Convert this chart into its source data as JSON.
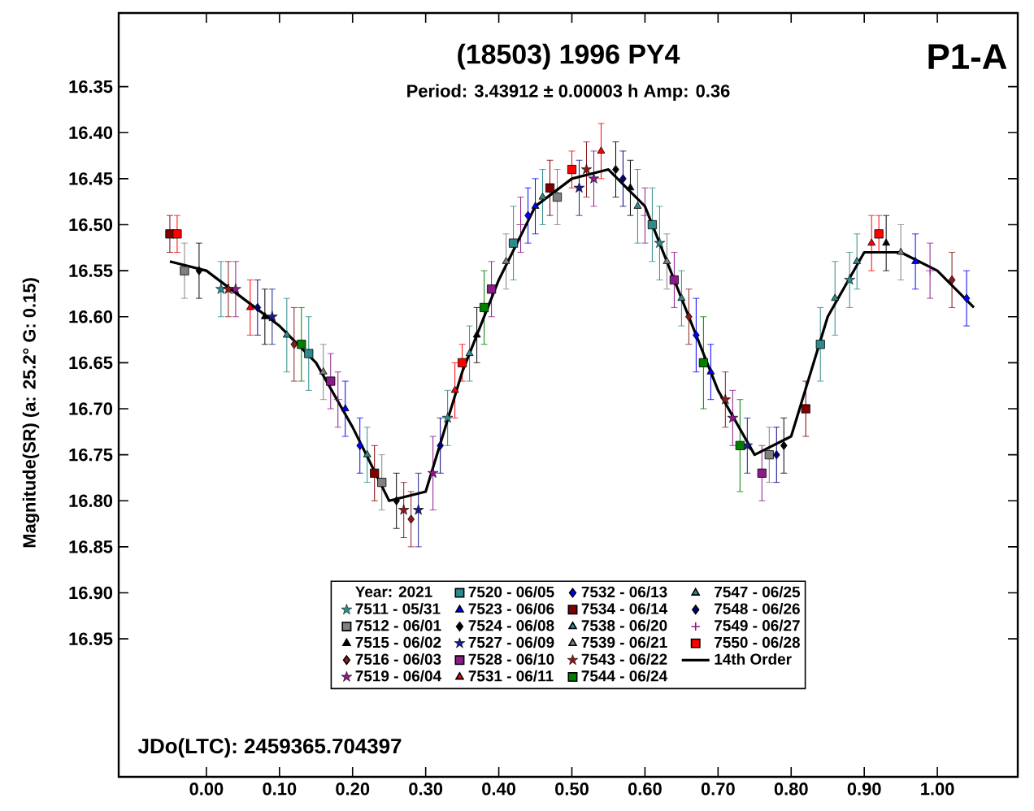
{
  "chart_data": {
    "type": "scatter",
    "title": "(18503) 1996 PY4",
    "subtitle": "Period: 3.43912 ± 0.00003 h  Amp: 0.36",
    "ylabel": "Magnitude(SR)  (a: 25.2°  G: 0.15)",
    "legend_title": "Year: 2021",
    "legend": "bottom",
    "annotations": [
      "P1-A",
      "JDo(LTC): 2459365.704397"
    ],
    "xlim": [
      -0.12,
      1.11
    ],
    "ylim": [
      17.1,
      16.27
    ],
    "xticks": [
      {
        "value": 0,
        "label": "0.00"
      },
      {
        "value": 0.1,
        "label": "0.10"
      },
      {
        "value": 0.2,
        "label": "0.20"
      },
      {
        "value": 0.3,
        "label": "0.30"
      },
      {
        "value": 0.4,
        "label": "0.40"
      },
      {
        "value": 0.5,
        "label": "0.50"
      },
      {
        "value": 0.6,
        "label": "0.60"
      },
      {
        "value": 0.7,
        "label": "0.70"
      },
      {
        "value": 0.8,
        "label": "0.80"
      },
      {
        "value": 0.9,
        "label": "0.90"
      },
      {
        "value": 1.0,
        "label": "1.00"
      }
    ],
    "yticks": [
      {
        "value": 16.35,
        "label": "16.35"
      },
      {
        "value": 16.4,
        "label": "16.40"
      },
      {
        "value": 16.45,
        "label": "16.45"
      },
      {
        "value": 16.5,
        "label": "16.50"
      },
      {
        "value": 16.55,
        "label": "16.55"
      },
      {
        "value": 16.6,
        "label": "16.60"
      },
      {
        "value": 16.65,
        "label": "16.65"
      },
      {
        "value": 16.7,
        "label": "16.70"
      },
      {
        "value": 16.75,
        "label": "16.75"
      },
      {
        "value": 16.8,
        "label": "16.80"
      },
      {
        "value": 16.85,
        "label": "16.85"
      },
      {
        "value": 16.9,
        "label": "16.90"
      },
      {
        "value": 16.95,
        "label": "16.95"
      }
    ],
    "series": [
      {
        "name": "7511 - 05/31",
        "color": "#2e8b8b",
        "marker": "star",
        "x": [
          0.02,
          0.33,
          0.62,
          0.88
        ],
        "values": [
          16.57,
          16.71,
          16.52,
          16.56
        ],
        "errors": [
          0.03,
          0.03,
          0.04,
          0.03
        ]
      },
      {
        "name": "7512 - 06/01",
        "color": "#808080",
        "marker": "square",
        "x": [
          -0.03,
          0.24,
          0.48,
          0.77
        ],
        "values": [
          16.55,
          16.78,
          16.47,
          16.75
        ],
        "errors": [
          0.03,
          0.03,
          0.03,
          0.03
        ]
      },
      {
        "name": "7515 - 06/02",
        "color": "#000000",
        "marker": "triangle",
        "x": [
          0.08,
          0.37,
          0.58,
          0.93
        ],
        "values": [
          16.6,
          16.62,
          16.46,
          16.52
        ],
        "errors": [
          0.03,
          0.03,
          0.03,
          0.03
        ]
      },
      {
        "name": "7516 - 06/03",
        "color": "#8b1a1a",
        "marker": "diamond",
        "x": [
          0.12,
          0.28,
          0.66,
          1.02
        ],
        "values": [
          16.63,
          16.82,
          16.6,
          16.56
        ],
        "errors": [
          0.04,
          0.03,
          0.03,
          0.03
        ]
      },
      {
        "name": "7519 - 06/04",
        "color": "#8b1a8b",
        "marker": "star",
        "x": [
          0.04,
          0.31,
          0.53,
          0.72
        ],
        "values": [
          16.57,
          16.77,
          16.45,
          16.71
        ],
        "errors": [
          0.03,
          0.04,
          0.03,
          0.03
        ]
      },
      {
        "name": "7520 - 06/05",
        "color": "#2e8b8b",
        "marker": "square",
        "x": [
          0.14,
          0.42,
          0.61,
          0.84
        ],
        "values": [
          16.64,
          16.52,
          16.5,
          16.63
        ],
        "errors": [
          0.04,
          0.04,
          0.04,
          0.04
        ]
      },
      {
        "name": "7523 - 06/06",
        "color": "#0000ff",
        "marker": "triangle",
        "x": [
          0.19,
          0.45,
          0.69,
          0.97
        ],
        "values": [
          16.7,
          16.48,
          16.66,
          16.54
        ],
        "errors": [
          0.03,
          0.03,
          0.03,
          0.03
        ]
      },
      {
        "name": "7524 - 06/08",
        "color": "#000000",
        "marker": "diamond",
        "x": [
          -0.01,
          0.26,
          0.56,
          0.79
        ],
        "values": [
          16.55,
          16.8,
          16.44,
          16.74
        ],
        "errors": [
          0.03,
          0.03,
          0.03,
          0.03
        ]
      },
      {
        "name": "7527 - 06/09",
        "color": "#1a1a8b",
        "marker": "star",
        "x": [
          0.09,
          0.29,
          0.51,
          0.74
        ],
        "values": [
          16.6,
          16.81,
          16.46,
          16.74
        ],
        "errors": [
          0.03,
          0.04,
          0.03,
          0.03
        ]
      },
      {
        "name": "7528 - 06/10",
        "color": "#8b1a8b",
        "marker": "square",
        "x": [
          0.17,
          0.39,
          0.64,
          0.76
        ],
        "values": [
          16.67,
          16.57,
          16.56,
          16.77
        ],
        "errors": [
          0.03,
          0.03,
          0.03,
          0.03
        ]
      },
      {
        "name": "7531 - 06/11",
        "color": "#ff0000",
        "marker": "triangle",
        "x": [
          0.06,
          0.34,
          0.54,
          0.91
        ],
        "values": [
          16.59,
          16.68,
          16.42,
          16.52
        ],
        "errors": [
          0.03,
          0.03,
          0.03,
          0.03
        ]
      },
      {
        "name": "7532 - 06/13",
        "color": "#0000ff",
        "marker": "diamond",
        "x": [
          0.21,
          0.44,
          0.67,
          1.04
        ],
        "values": [
          16.74,
          16.49,
          16.62,
          16.58
        ],
        "errors": [
          0.03,
          0.03,
          0.04,
          0.03
        ]
      },
      {
        "name": "7534 - 06/14",
        "color": "#800000",
        "marker": "square",
        "x": [
          -0.05,
          0.23,
          0.47,
          0.82
        ],
        "values": [
          16.51,
          16.77,
          16.46,
          16.7
        ],
        "errors": [
          0.02,
          0.03,
          0.03,
          0.03
        ]
      },
      {
        "name": "7538 - 06/20",
        "color": "#2e8b8b",
        "marker": "triangle",
        "x": [
          0.11,
          0.36,
          0.59,
          0.86
        ],
        "values": [
          16.62,
          16.64,
          16.48,
          16.58
        ],
        "errors": [
          0.04,
          0.03,
          0.04,
          0.04
        ]
      },
      {
        "name": "7539 - 06/21",
        "color": "#808080",
        "marker": "triangle",
        "x": [
          0.16,
          0.41,
          0.63,
          0.95
        ],
        "values": [
          16.66,
          16.54,
          16.54,
          16.53
        ],
        "errors": [
          0.03,
          0.03,
          0.03,
          0.03
        ]
      },
      {
        "name": "7543 - 06/22",
        "color": "#8b1a1a",
        "marker": "star",
        "x": [
          0.03,
          0.27,
          0.52,
          0.71
        ],
        "values": [
          16.57,
          16.81,
          16.44,
          16.69
        ],
        "errors": [
          0.03,
          0.03,
          0.03,
          0.03
        ]
      },
      {
        "name": "7544 - 06/24",
        "color": "#008000",
        "marker": "square",
        "x": [
          0.13,
          0.38,
          0.68,
          0.73
        ],
        "values": [
          16.63,
          16.59,
          16.65,
          16.74
        ],
        "errors": [
          0.04,
          0.04,
          0.05,
          0.05
        ]
      },
      {
        "name": "7547 - 06/25",
        "color": "#2e8b8b",
        "marker": "triangle",
        "x": [
          0.22,
          0.46,
          0.65,
          0.89
        ],
        "values": [
          16.75,
          16.47,
          16.58,
          16.54
        ],
        "errors": [
          0.03,
          0.03,
          0.03,
          0.03
        ]
      },
      {
        "name": "7548 - 06/26",
        "color": "#000080",
        "marker": "diamond",
        "x": [
          0.07,
          0.32,
          0.57,
          0.78
        ],
        "values": [
          16.59,
          16.74,
          16.45,
          16.75
        ],
        "errors": [
          0.03,
          0.03,
          0.03,
          0.03
        ]
      },
      {
        "name": "7549 - 06/27",
        "color": "#8b1a8b",
        "marker": "cross",
        "x": [
          0.18,
          0.43,
          0.6,
          0.99
        ],
        "values": [
          16.69,
          16.5,
          16.49,
          16.55
        ],
        "errors": [
          0.03,
          0.03,
          0.03,
          0.03
        ]
      },
      {
        "name": "7550 - 06/28",
        "color": "#ff0000",
        "marker": "square",
        "x": [
          -0.04,
          0.35,
          0.5,
          0.92
        ],
        "values": [
          16.51,
          16.65,
          16.44,
          16.51
        ],
        "errors": [
          0.02,
          0.02,
          0.02,
          0.02
        ]
      },
      {
        "name": "14th Order",
        "type": "line",
        "color": "#000000",
        "line_style": "solid",
        "marker": "none",
        "x": [
          -0.05,
          0.0,
          0.05,
          0.1,
          0.15,
          0.2,
          0.25,
          0.3,
          0.35,
          0.4,
          0.45,
          0.5,
          0.55,
          0.6,
          0.65,
          0.7,
          0.75,
          0.8,
          0.85,
          0.9,
          0.95,
          1.0,
          1.05
        ],
        "values": [
          16.54,
          16.55,
          16.58,
          16.61,
          16.65,
          16.72,
          16.8,
          16.79,
          16.66,
          16.56,
          16.48,
          16.45,
          16.44,
          16.48,
          16.58,
          16.68,
          16.75,
          16.73,
          16.6,
          16.53,
          16.53,
          16.55,
          16.59
        ]
      }
    ]
  }
}
